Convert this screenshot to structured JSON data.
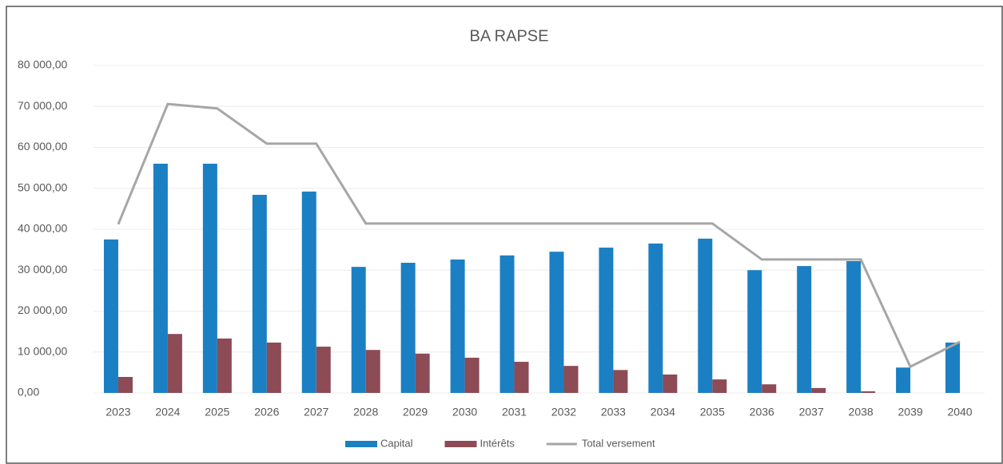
{
  "chart_data": {
    "type": "bar",
    "title": "BA RAPSE",
    "categories": [
      "2023",
      "2024",
      "2025",
      "2026",
      "2027",
      "2028",
      "2029",
      "2030",
      "2031",
      "2032",
      "2033",
      "2034",
      "2035",
      "2036",
      "2037",
      "2038",
      "2039",
      "2040"
    ],
    "series": [
      {
        "name": "Capital",
        "color": "#1b7fc3",
        "values": [
          37500,
          56000,
          56000,
          48400,
          49200,
          30800,
          31800,
          32600,
          33600,
          34500,
          35500,
          36500,
          37700,
          30000,
          31000,
          32200,
          6200,
          12300
        ]
      },
      {
        "name": "Intérêts",
        "color": "#8c4b55",
        "values": [
          3900,
          14400,
          13300,
          12300,
          11300,
          10500,
          9600,
          8600,
          7600,
          6600,
          5600,
          4500,
          3300,
          2100,
          1200,
          400,
          0,
          0
        ]
      },
      {
        "name": "Total versement",
        "type": "line",
        "color": "#a6a6a6",
        "values": [
          41200,
          70600,
          69500,
          60900,
          60900,
          41400,
          41400,
          41400,
          41400,
          41400,
          41400,
          41400,
          41400,
          32600,
          32600,
          32600,
          6400,
          12500
        ]
      }
    ],
    "ylim": [
      0,
      80000
    ],
    "yticks": [
      {
        "value": 0,
        "label": "0,00"
      },
      {
        "value": 10000,
        "label": "10 000,00"
      },
      {
        "value": 20000,
        "label": "20 000,00"
      },
      {
        "value": 30000,
        "label": "30 000,00"
      },
      {
        "value": 40000,
        "label": "40 000,00"
      },
      {
        "value": 50000,
        "label": "50 000,00"
      },
      {
        "value": 60000,
        "label": "60 000,00"
      },
      {
        "value": 70000,
        "label": "70 000,00"
      },
      {
        "value": 80000,
        "label": "80 000,00"
      }
    ],
    "grid": true,
    "legend": "bottom"
  }
}
